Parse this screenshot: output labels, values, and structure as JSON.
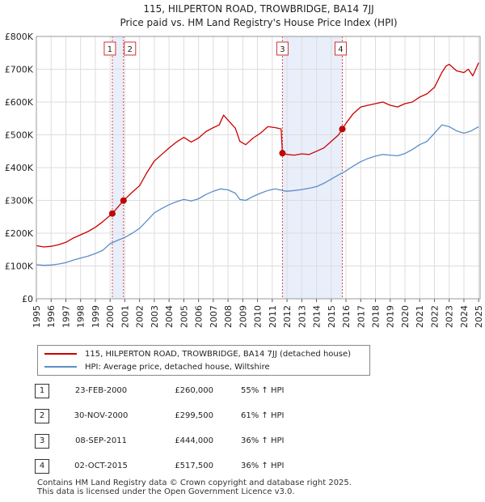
{
  "chart_data": {
    "type": "line",
    "title": "115, HILPERTON ROAD, TROWBRIDGE, BA14 7JJ",
    "subtitle": "Price paid vs. HM Land Registry's House Price Index (HPI)",
    "xlim": [
      1995,
      2025.1
    ],
    "ylim": [
      0,
      800000
    ],
    "x_ticks": [
      1995,
      1996,
      1997,
      1998,
      1999,
      2000,
      2001,
      2002,
      2003,
      2004,
      2005,
      2006,
      2007,
      2008,
      2009,
      2010,
      2011,
      2012,
      2013,
      2014,
      2015,
      2016,
      2017,
      2018,
      2019,
      2020,
      2021,
      2022,
      2023,
      2024,
      2025
    ],
    "y_ticks": [
      {
        "value": 0,
        "label": "£0"
      },
      {
        "value": 100000,
        "label": "£100K"
      },
      {
        "value": 200000,
        "label": "£200K"
      },
      {
        "value": 300000,
        "label": "£300K"
      },
      {
        "value": 400000,
        "label": "£400K"
      },
      {
        "value": 500000,
        "label": "£500K"
      },
      {
        "value": 600000,
        "label": "£600K"
      },
      {
        "value": 700000,
        "label": "£700K"
      },
      {
        "value": 800000,
        "label": "£800K"
      }
    ],
    "shaded_ranges": [
      [
        2000.15,
        2000.91
      ],
      [
        2011.69,
        2015.75
      ]
    ],
    "series": [
      {
        "name": "115, HILPERTON ROAD, TROWBRIDGE, BA14 7JJ (detached house)",
        "color": "#cc0000",
        "x": [
          1995.0,
          1995.5,
          1996.0,
          1996.5,
          1997.0,
          1997.5,
          1998.0,
          1998.5,
          1999.0,
          1999.5,
          2000.15,
          2000.5,
          2000.91,
          2001.5,
          2002.0,
          2002.5,
          2003.0,
          2003.5,
          2004.0,
          2004.5,
          2005.0,
          2005.5,
          2006.0,
          2006.5,
          2007.0,
          2007.4,
          2007.7,
          2008.0,
          2008.5,
          2008.8,
          2009.2,
          2009.7,
          2010.2,
          2010.7,
          2011.2,
          2011.6,
          2011.69,
          2012.0,
          2012.5,
          2013.0,
          2013.5,
          2014.0,
          2014.5,
          2015.0,
          2015.5,
          2015.75,
          2016.0,
          2016.5,
          2017.0,
          2017.5,
          2018.0,
          2018.5,
          2019.0,
          2019.5,
          2020.0,
          2020.5,
          2021.0,
          2021.5,
          2022.0,
          2022.5,
          2022.8,
          2023.0,
          2023.5,
          2024.0,
          2024.3,
          2024.6,
          2025.0
        ],
        "values": [
          162000,
          158000,
          160000,
          165000,
          172000,
          185000,
          195000,
          205000,
          218000,
          235000,
          260000,
          278000,
          299500,
          325000,
          345000,
          385000,
          420000,
          440000,
          460000,
          478000,
          492000,
          478000,
          490000,
          510000,
          522000,
          530000,
          560000,
          545000,
          520000,
          480000,
          470000,
          490000,
          505000,
          525000,
          522000,
          518000,
          444000,
          440000,
          438000,
          442000,
          440000,
          450000,
          460000,
          480000,
          500000,
          517500,
          535000,
          565000,
          585000,
          590000,
          595000,
          600000,
          590000,
          585000,
          595000,
          600000,
          615000,
          625000,
          645000,
          690000,
          710000,
          715000,
          695000,
          690000,
          700000,
          680000,
          720000
        ]
      },
      {
        "name": "HPI: Average price, detached house, Wiltshire",
        "color": "#5b8ec9",
        "x": [
          1995.0,
          1995.5,
          1996.0,
          1996.5,
          1997.0,
          1997.5,
          1998.0,
          1998.5,
          1999.0,
          1999.5,
          2000.0,
          2000.5,
          2001.0,
          2001.5,
          2002.0,
          2002.5,
          2003.0,
          2003.5,
          2004.0,
          2004.5,
          2005.0,
          2005.5,
          2006.0,
          2006.5,
          2007.0,
          2007.5,
          2008.0,
          2008.5,
          2008.8,
          2009.2,
          2009.7,
          2010.2,
          2010.7,
          2011.2,
          2011.7,
          2012.0,
          2012.5,
          2013.0,
          2013.5,
          2014.0,
          2014.5,
          2015.0,
          2015.5,
          2016.0,
          2016.5,
          2017.0,
          2017.5,
          2018.0,
          2018.5,
          2019.0,
          2019.5,
          2020.0,
          2020.5,
          2021.0,
          2021.5,
          2022.0,
          2022.5,
          2023.0,
          2023.5,
          2024.0,
          2024.5,
          2025.0
        ],
        "values": [
          104000,
          102000,
          103000,
          106000,
          110000,
          118000,
          124000,
          130000,
          138000,
          148000,
          168000,
          178000,
          187000,
          200000,
          215000,
          238000,
          262000,
          275000,
          287000,
          296000,
          303000,
          298000,
          305000,
          318000,
          328000,
          335000,
          332000,
          322000,
          303000,
          300000,
          312000,
          322000,
          330000,
          335000,
          330000,
          328000,
          330000,
          333000,
          337000,
          342000,
          352000,
          365000,
          378000,
          390000,
          405000,
          418000,
          428000,
          435000,
          440000,
          438000,
          436000,
          443000,
          455000,
          470000,
          480000,
          505000,
          530000,
          525000,
          512000,
          505000,
          512000,
          525000
        ]
      }
    ],
    "sales": [
      {
        "n": "1",
        "x": 2000.15,
        "value": 260000
      },
      {
        "n": "2",
        "x": 2000.91,
        "value": 299500
      },
      {
        "n": "3",
        "x": 2011.69,
        "value": 444000
      },
      {
        "n": "4",
        "x": 2015.75,
        "value": 517500
      }
    ]
  },
  "legend": {
    "property": "115, HILPERTON ROAD, TROWBRIDGE, BA14 7JJ (detached house)",
    "hpi": "HPI: Average price, detached house, Wiltshire"
  },
  "sales_table": [
    {
      "n": "1",
      "date": "23-FEB-2000",
      "price": "£260,000",
      "hpi": "55% ↑ HPI"
    },
    {
      "n": "2",
      "date": "30-NOV-2000",
      "price": "£299,500",
      "hpi": "61% ↑ HPI"
    },
    {
      "n": "3",
      "date": "08-SEP-2011",
      "price": "£444,000",
      "hpi": "36% ↑ HPI"
    },
    {
      "n": "4",
      "date": "02-OCT-2015",
      "price": "£517,500",
      "hpi": "36% ↑ HPI"
    }
  ],
  "footer": {
    "line1": "Contains HM Land Registry data © Crown copyright and database right 2025.",
    "line2": "This data is licensed under the Open Government Licence v3.0."
  },
  "colors": {
    "property": "#cc0000",
    "hpi": "#5b8ec9",
    "shade": "#e8eefa",
    "grid": "#dddddd"
  }
}
